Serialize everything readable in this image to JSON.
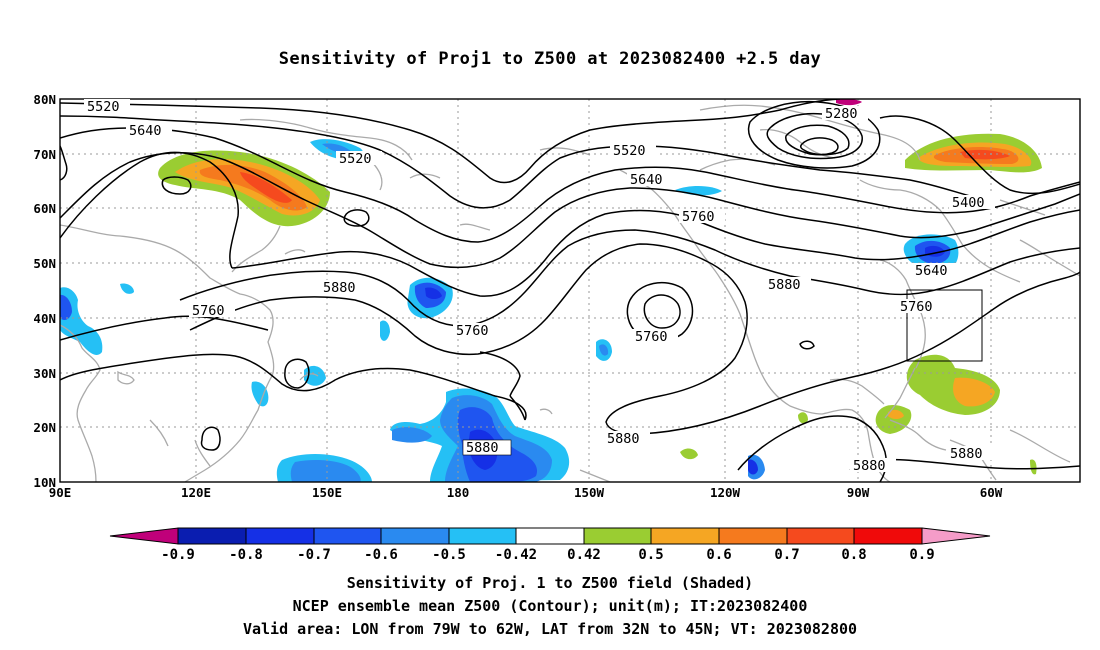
{
  "title": "Sensitivity of Proj1 to Z500 at 2023082400 +2.5 day",
  "axes": {
    "lat_labels": [
      "80N",
      "70N",
      "60N",
      "50N",
      "40N",
      "30N",
      "20N",
      "10N"
    ],
    "lon_labels": [
      "90E",
      "120E",
      "150E",
      "180",
      "150W",
      "120W",
      "90W",
      "60W"
    ]
  },
  "contour_labels": [
    "5520",
    "5640",
    "5520",
    "5520",
    "5640",
    "5760",
    "5280",
    "5400",
    "5880",
    "5760",
    "5880",
    "5760",
    "5640",
    "5760",
    "5760",
    "5880",
    "5880",
    "5880",
    "5880"
  ],
  "valid_box": {
    "lon_range": [
      "79W",
      "62W"
    ],
    "lat_range": [
      "32N",
      "45N"
    ]
  },
  "colorbar": {
    "tick_labels": [
      "-0.9",
      "-0.8",
      "-0.7",
      "-0.6",
      "-0.5",
      "-0.42",
      "0.42",
      "0.5",
      "0.6",
      "0.7",
      "0.8",
      "0.9"
    ],
    "colors": [
      "#c0007a",
      "#0a1db0",
      "#1530e6",
      "#1f55f0",
      "#2a8af0",
      "#25c0f5",
      "#ffffff",
      "#9acd32",
      "#f5a623",
      "#f57a1e",
      "#f54a1e",
      "#f00a0a",
      "#f59cc8"
    ]
  },
  "captions": [
    "Sensitivity of Proj. 1 to Z500 field (Shaded)",
    "NCEP ensemble mean Z500 (Contour); unit(m); IT:2023082400",
    "Valid area: LON from 79W to 62W, LAT from 32N to 45N; VT: 2023082800"
  ]
}
